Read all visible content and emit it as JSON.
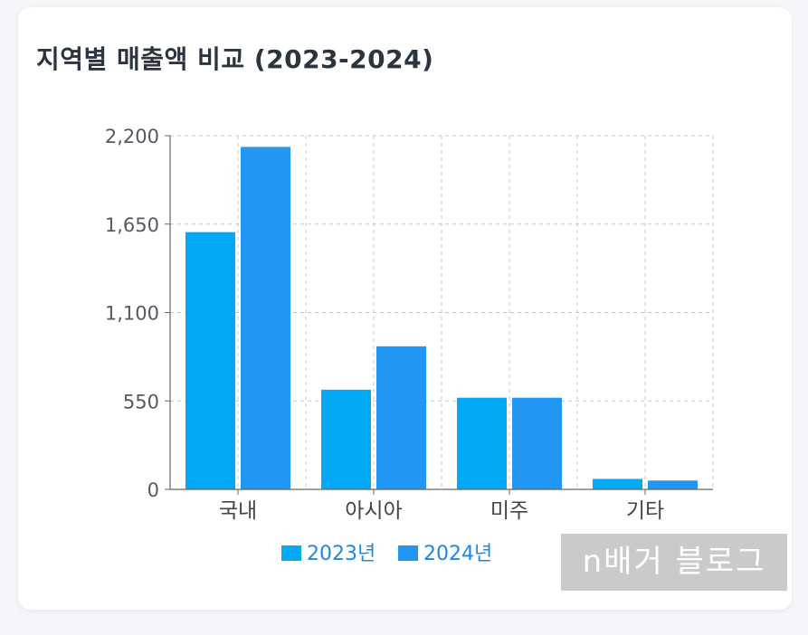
{
  "chart_data": {
    "type": "bar",
    "title": "지역별 매출액 비교 (2023-2024)",
    "categories": [
      "국내",
      "아시아",
      "미주",
      "기타"
    ],
    "series": [
      {
        "name": "2023년",
        "values": [
          1600,
          620,
          570,
          65
        ],
        "color": "#03a9f4"
      },
      {
        "name": "2024년",
        "values": [
          2130,
          890,
          570,
          55
        ],
        "color": "#2196f3"
      }
    ],
    "y_ticks": [
      "0",
      "550",
      "1,100",
      "1,650",
      "2,200"
    ],
    "ylim": [
      0,
      2200
    ],
    "grid": true,
    "legend_position": "bottom",
    "legend_text_color": "#1e88e5"
  },
  "watermark": "n배거 블로그"
}
